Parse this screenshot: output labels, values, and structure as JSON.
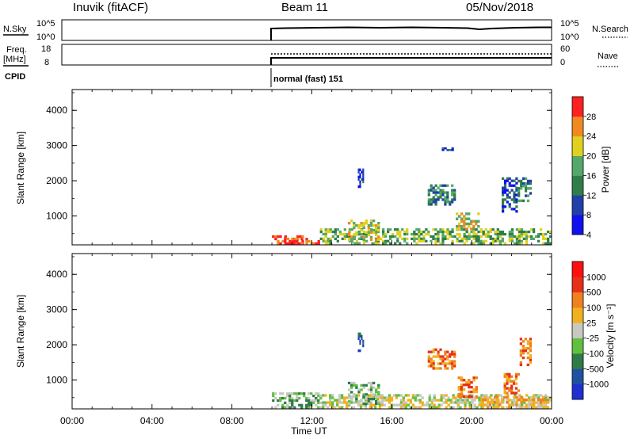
{
  "header": {
    "station": "Inuvik (fitACF)",
    "beam": "Beam 11",
    "date": "05/Nov/2018"
  },
  "sky_panel": {
    "left_label": "N.Sky",
    "left_ticks": [
      "10^5",
      "10^0"
    ],
    "right_ticks": [
      "10^5",
      "10^0"
    ],
    "right_label": "N.Search"
  },
  "freq_panel": {
    "left_label_line1": "Freq.",
    "left_label_line2": "[MHz]",
    "left_ticks": [
      "18",
      "8"
    ],
    "right_ticks": [
      "60",
      "0"
    ],
    "right_label": "Nave"
  },
  "cpid": {
    "label": "CPID",
    "mode_text": "normal (fast) 151"
  },
  "chart_data": [
    {
      "type": "heatmap",
      "name": "power",
      "ylabel": "Slant Range [km]",
      "yticks": [
        "4000",
        "3000",
        "2000",
        "1000"
      ],
      "ylim": [
        180,
        4590
      ],
      "xlim_hours": [
        0,
        24
      ],
      "colorbar_label": "Power [dB]",
      "colorbar_ticks": [
        "28",
        "24",
        "20",
        "16",
        "12",
        "8",
        "4"
      ],
      "colorbar_colors": [
        "#1010f0",
        "#2040a8",
        "#2f7e4a",
        "#55a76a",
        "#e0d020",
        "#f08a20",
        "#ff2020"
      ],
      "data_start_hour": 10,
      "echo_patches": [
        {
          "t0": 10.0,
          "t1": 11.6,
          "r0": 190,
          "r1": 450,
          "level": 6
        },
        {
          "t0": 10.6,
          "t1": 12.4,
          "r0": 190,
          "r1": 380,
          "level": 6
        },
        {
          "t0": 12.4,
          "t1": 24.0,
          "r0": 190,
          "r1": 650,
          "level": 3
        },
        {
          "t0": 13.8,
          "t1": 15.4,
          "r0": 300,
          "r1": 900,
          "level": 4
        },
        {
          "t0": 14.3,
          "t1": 14.6,
          "r0": 1800,
          "r1": 2350,
          "level": 1
        },
        {
          "t0": 17.8,
          "t1": 19.2,
          "r0": 1300,
          "r1": 1900,
          "level": 2
        },
        {
          "t0": 19.2,
          "t1": 20.4,
          "r0": 600,
          "r1": 1100,
          "level": 4
        },
        {
          "t0": 21.5,
          "t1": 22.3,
          "r0": 1100,
          "r1": 2100,
          "level": 1
        },
        {
          "t0": 22.3,
          "t1": 23.0,
          "r0": 1400,
          "r1": 2100,
          "level": 2
        },
        {
          "t0": 18.5,
          "t1": 19.1,
          "r0": 2850,
          "r1": 2950,
          "level": 1
        }
      ]
    },
    {
      "type": "heatmap",
      "name": "velocity",
      "ylabel": "Slant Range [km]",
      "yticks": [
        "4000",
        "3000",
        "2000",
        "1000"
      ],
      "ylim": [
        180,
        4590
      ],
      "xlim_hours": [
        0,
        24
      ],
      "xticks": [
        "00:00",
        "04:00",
        "08:00",
        "12:00",
        "16:00",
        "20:00",
        "00:00"
      ],
      "xlabel": "Time UT",
      "colorbar_label": "Velocity [m s⁻¹]",
      "colorbar_ticks": [
        "1000",
        "500",
        "100",
        "25",
        "-25",
        "-100",
        "-500",
        "-1000"
      ],
      "colorbar_colors": [
        "#2030d0",
        "#2050a0",
        "#307a4a",
        "#60c040",
        "#c8c8c0",
        "#f0b020",
        "#f08020",
        "#e83018",
        "#ff1010"
      ],
      "data_start_hour": 10,
      "echo_patches": [
        {
          "t0": 10.0,
          "t1": 12.5,
          "r0": 190,
          "r1": 650,
          "level": 3
        },
        {
          "t0": 12.5,
          "t1": 24.0,
          "r0": 190,
          "r1": 600,
          "level": 4
        },
        {
          "t0": 13.8,
          "t1": 15.4,
          "r0": 300,
          "r1": 950,
          "level": 3
        },
        {
          "t0": 14.3,
          "t1": 14.6,
          "r0": 1800,
          "r1": 2350,
          "level": 1
        },
        {
          "t0": 17.8,
          "t1": 19.2,
          "r0": 1300,
          "r1": 1900,
          "level": 6
        },
        {
          "t0": 19.3,
          "t1": 20.3,
          "r0": 500,
          "r1": 1100,
          "level": 6
        },
        {
          "t0": 21.6,
          "t1": 22.4,
          "r0": 600,
          "r1": 1200,
          "level": 6
        },
        {
          "t0": 22.4,
          "t1": 23.0,
          "r0": 1400,
          "r1": 2200,
          "level": 6
        },
        {
          "t0": 20.5,
          "t1": 24.0,
          "r0": 190,
          "r1": 550,
          "level": 5
        }
      ]
    }
  ]
}
